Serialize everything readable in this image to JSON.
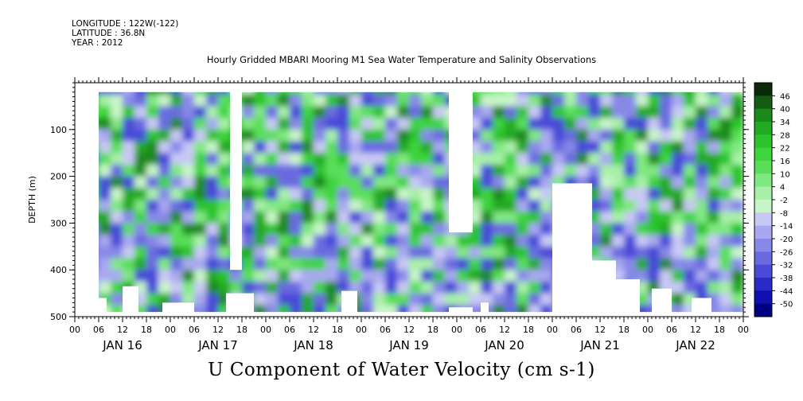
{
  "header": {
    "longitude": "LONGITUDE : 122W(-122)",
    "latitude": "LATITUDE : 36.8N",
    "year": "YEAR : 2012"
  },
  "title": "Hourly Gridded MBARI Mooring M1 Sea Water Temperature and Salinity Observations",
  "bottom_title": "U Component of Water Velocity (cm s-1)",
  "chart_data": {
    "type": "heatmap",
    "ylabel": "DEPTH (m)",
    "y_ticks": [
      "100",
      "200",
      "300",
      "400",
      "500"
    ],
    "y_tick_values": [
      100,
      200,
      300,
      400,
      500
    ],
    "ylim": [
      500,
      0
    ],
    "x_hour_ticks": [
      "00",
      "06",
      "12",
      "18",
      "00",
      "06",
      "12",
      "18",
      "00",
      "06",
      "12",
      "18",
      "00",
      "06",
      "12",
      "18",
      "00",
      "06",
      "12",
      "18",
      "00",
      "06",
      "12",
      "18",
      "00",
      "06",
      "12",
      "18",
      "00"
    ],
    "x_day_labels": [
      "JAN 16",
      "JAN 17",
      "JAN 18",
      "JAN 19",
      "JAN 20",
      "JAN 21",
      "JAN 22"
    ],
    "colorbar_labels": [
      "46",
      "40",
      "34",
      "28",
      "22",
      "16",
      "10",
      "4",
      "-2",
      "-8",
      "-14",
      "-20",
      "-26",
      "-32",
      "-38",
      "-44",
      "-50"
    ],
    "colorbar_range": [
      -50,
      50
    ],
    "colorbar_colors": [
      "#0a2b0a",
      "#145c14",
      "#1a8a1a",
      "#22aa22",
      "#2cc42c",
      "#3dd43d",
      "#5ade5a",
      "#80e880",
      "#a8f0a8",
      "#c8f5c8",
      "#c8c8f5",
      "#a8a8f0",
      "#8888e8",
      "#6a6ae0",
      "#4a4ad8",
      "#2a2ac8",
      "#1010b0",
      "#000080"
    ],
    "grid": false
  }
}
